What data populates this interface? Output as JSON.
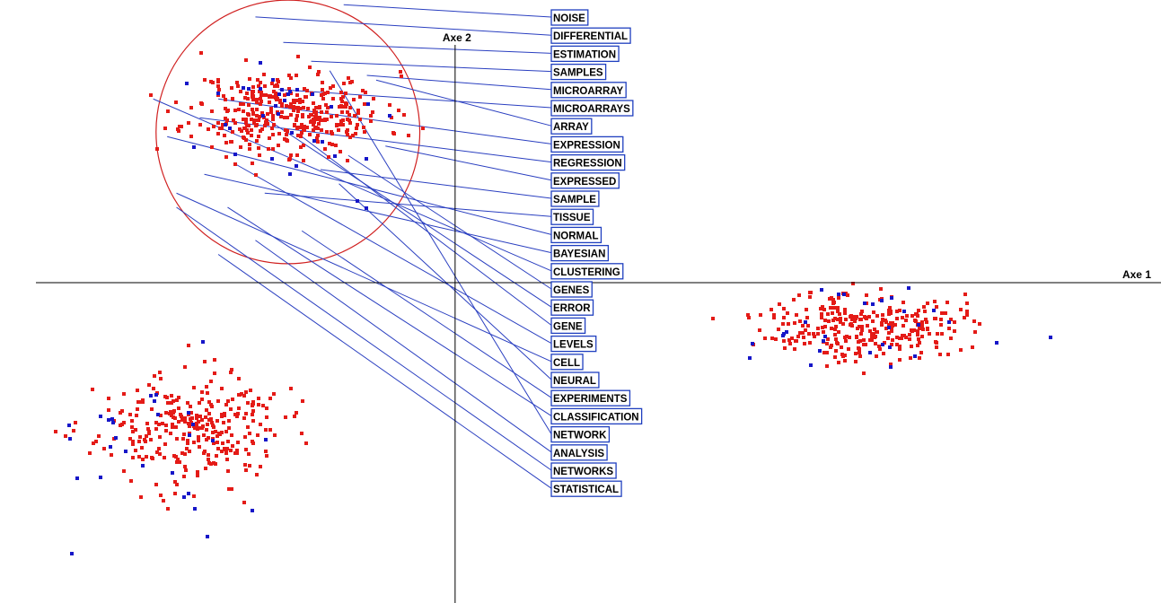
{
  "chart_data": {
    "type": "scatter",
    "title": "",
    "xlabel": "Axe 1",
    "ylabel": "Axe 2",
    "xlim": [
      -4.9,
      7.6
    ],
    "ylim": [
      -3.4,
      3.0
    ],
    "grid": false,
    "legend": "none",
    "colors": {
      "red": "#e41b17",
      "blue": "#1616c8",
      "leader": "#2a3fc0",
      "circle": "#d02020",
      "axis": "#000000"
    },
    "clusters": [
      {
        "name": "",
        "color": "red",
        "center": [
          -1.8,
          1.8
        ],
        "spread": [
          0.95,
          0.4
        ],
        "count": 380,
        "seed": 11
      },
      {
        "name": "",
        "color": "red",
        "center": [
          -2.85,
          -1.55
        ],
        "spread": [
          0.9,
          0.52
        ],
        "count": 300,
        "seed": 23
      },
      {
        "name": "",
        "color": "red",
        "center": [
          4.4,
          -0.45
        ],
        "spread": [
          0.95,
          0.33
        ],
        "count": 300,
        "seed": 37
      },
      {
        "name": "",
        "color": "blue",
        "center": [
          -1.8,
          1.7
        ],
        "spread": [
          1.2,
          0.65
        ],
        "count": 34,
        "seed": 41
      },
      {
        "name": "",
        "color": "blue",
        "center": [
          -3.2,
          -1.7
        ],
        "spread": [
          1.3,
          0.9
        ],
        "count": 30,
        "seed": 53
      },
      {
        "name": "",
        "color": "blue",
        "center": [
          4.6,
          -0.55
        ],
        "spread": [
          1.5,
          0.45
        ],
        "count": 30,
        "seed": 67
      }
    ],
    "zoom_circle": {
      "center": [
        -1.8,
        1.6
      ],
      "radius_x": 1.42
    },
    "terms": [
      {
        "label": "NOISE",
        "target": [
          -1.2,
          2.95
        ]
      },
      {
        "label": "DIFFERENTIAL",
        "target": [
          -2.15,
          2.82
        ]
      },
      {
        "label": "ESTIMATION",
        "target": [
          -1.85,
          2.55
        ]
      },
      {
        "label": "SAMPLES",
        "target": [
          -1.55,
          2.35
        ]
      },
      {
        "label": "MICROARRAY",
        "target": [
          -0.95,
          2.2
        ]
      },
      {
        "label": "MICROARRAYS",
        "target": [
          -1.9,
          2.05
        ]
      },
      {
        "label": "ARRAY",
        "target": [
          -0.85,
          2.15
        ]
      },
      {
        "label": "EXPRESSION",
        "target": [
          -2.55,
          1.95
        ]
      },
      {
        "label": "REGRESSION",
        "target": [
          -2.75,
          1.75
        ]
      },
      {
        "label": "EXPRESSED",
        "target": [
          -0.75,
          1.45
        ]
      },
      {
        "label": "SAMPLE",
        "target": [
          -1.45,
          1.2
        ]
      },
      {
        "label": "TISSUE",
        "target": [
          -2.05,
          0.95
        ]
      },
      {
        "label": "NORMAL",
        "target": [
          -3.1,
          1.55
        ]
      },
      {
        "label": "BAYESIAN",
        "target": [
          -2.7,
          1.15
        ]
      },
      {
        "label": "CLUSTERING",
        "target": [
          -3.25,
          1.95
        ]
      },
      {
        "label": "GENES",
        "target": [
          -1.15,
          1.35
        ]
      },
      {
        "label": "ERROR",
        "target": [
          -2.05,
          1.75
        ]
      },
      {
        "label": "GENE",
        "target": [
          -1.65,
          1.55
        ]
      },
      {
        "label": "LEVELS",
        "target": [
          -2.35,
          1.25
        ]
      },
      {
        "label": "CELL",
        "target": [
          -3.0,
          0.95
        ]
      },
      {
        "label": "NEURAL",
        "target": [
          -1.25,
          1.05
        ]
      },
      {
        "label": "EXPERIMENTS",
        "target": [
          -1.65,
          0.55
        ]
      },
      {
        "label": "CLASSIFICATION",
        "target": [
          -2.45,
          0.8
        ]
      },
      {
        "label": "NETWORK",
        "target": [
          -1.35,
          2.25
        ]
      },
      {
        "label": "ANALYSIS",
        "target": [
          -2.15,
          0.45
        ]
      },
      {
        "label": "NETWORKS",
        "target": [
          -3.0,
          0.8
        ]
      },
      {
        "label": "STATISTICAL",
        "target": [
          -2.55,
          0.3
        ]
      }
    ]
  }
}
